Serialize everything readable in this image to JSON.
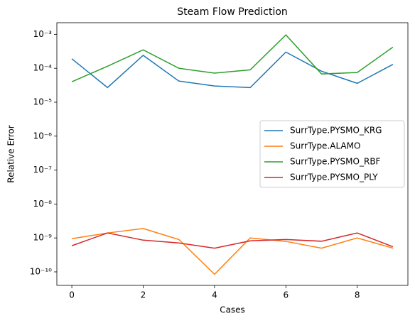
{
  "chart_data": {
    "type": "line",
    "title": "Steam Flow Prediction",
    "xlabel": "Cases",
    "ylabel": "Relative Error",
    "x": [
      0,
      1,
      2,
      3,
      4,
      5,
      6,
      7,
      8,
      9
    ],
    "xlim": [
      -0.42,
      9.42
    ],
    "xticks": [
      0,
      2,
      4,
      6,
      8
    ],
    "ylim": [
      4e-11,
      0.0022
    ],
    "log_y": true,
    "yticks": [
      {
        "value": 1e-10,
        "label": "10⁻¹⁰"
      },
      {
        "value": 1e-09,
        "label": "10⁻⁹"
      },
      {
        "value": 1e-08,
        "label": "10⁻⁸"
      },
      {
        "value": 1e-07,
        "label": "10⁻⁷"
      },
      {
        "value": 1e-06,
        "label": "10⁻⁶"
      },
      {
        "value": 1e-05,
        "label": "10⁻⁵"
      },
      {
        "value": 0.0001,
        "label": "10⁻⁴"
      },
      {
        "value": 0.001,
        "label": "10⁻³"
      }
    ],
    "legend": "center right",
    "grid": false,
    "series": [
      {
        "name": "SurrType.PYSMO_KRG",
        "color": "#1f77b4",
        "values": [
          0.00019,
          2.7e-05,
          0.00024,
          4.2e-05,
          3e-05,
          2.7e-05,
          0.0003,
          8.2e-05,
          3.6e-05,
          0.00013
        ]
      },
      {
        "name": "SurrType.ALAMO",
        "color": "#ff7f0e",
        "values": [
          9.5e-10,
          1.4e-09,
          1.9e-09,
          9e-10,
          8.5e-11,
          1e-09,
          7.9e-10,
          5e-10,
          1e-09,
          5e-10
        ]
      },
      {
        "name": "SurrType.PYSMO_RBF",
        "color": "#2ca02c",
        "values": [
          4e-05,
          0.000115,
          0.00035,
          0.0001,
          7.2e-05,
          9e-05,
          0.00096,
          6.8e-05,
          7.5e-05,
          0.00042
        ]
      },
      {
        "name": "SurrType.PYSMO_PLY",
        "color": "#d62728",
        "values": [
          5.9e-10,
          1.4e-09,
          8.6e-10,
          7.1e-10,
          5e-10,
          8.2e-10,
          9e-10,
          8e-10,
          1.4e-09,
          5.5e-10
        ]
      }
    ]
  }
}
